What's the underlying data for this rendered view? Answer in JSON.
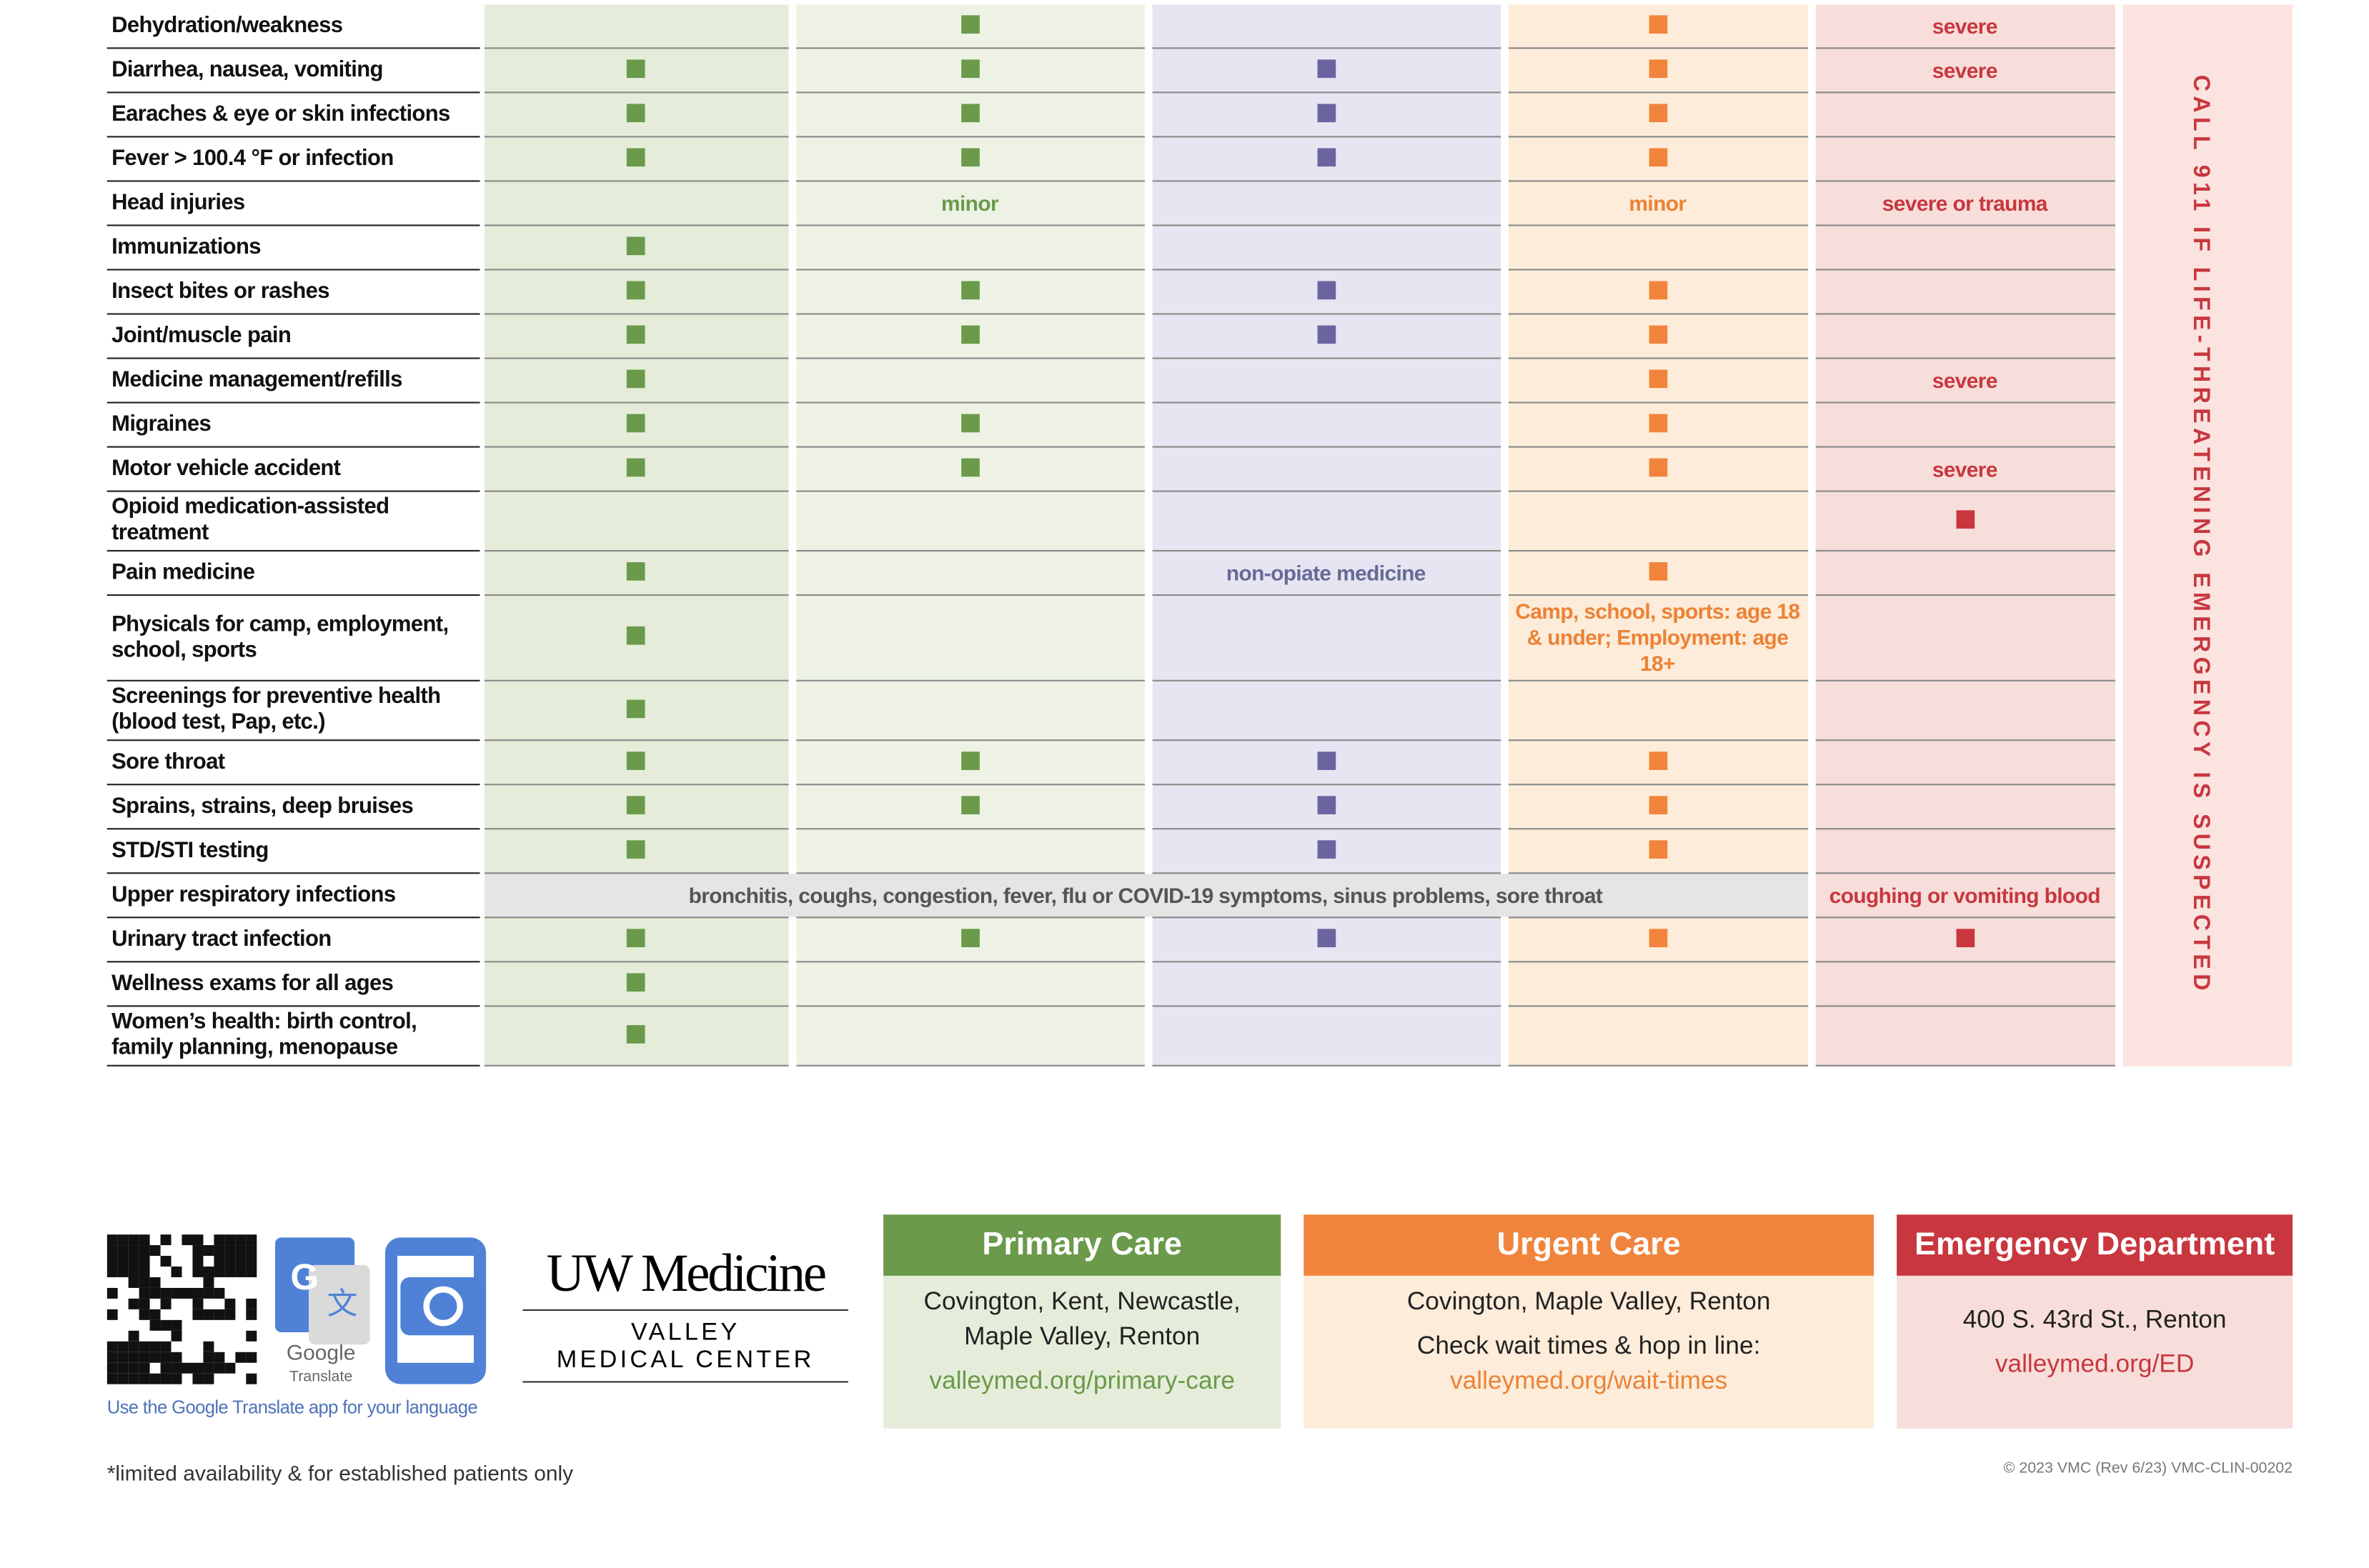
{
  "table": {
    "rows": [
      {
        "label": "Dehydration/weakness",
        "cells": [
          false,
          true,
          false,
          true,
          "severe"
        ]
      },
      {
        "label": "Diarrhea, nausea, vomiting",
        "cells": [
          true,
          true,
          true,
          true,
          "severe"
        ]
      },
      {
        "label": "Earaches & eye or skin infections",
        "cells": [
          true,
          true,
          true,
          true,
          false
        ]
      },
      {
        "label": "Fever > 100.4 °F or infection",
        "cells": [
          true,
          true,
          true,
          true,
          false
        ]
      },
      {
        "label": "Head injuries",
        "cells": [
          false,
          "minor",
          false,
          "minor",
          "severe or trauma"
        ]
      },
      {
        "label": "Immunizations",
        "cells": [
          true,
          false,
          false,
          false,
          false
        ]
      },
      {
        "label": "Insect bites or rashes",
        "cells": [
          true,
          true,
          true,
          true,
          false
        ]
      },
      {
        "label": "Joint/muscle pain",
        "cells": [
          true,
          true,
          true,
          true,
          false
        ]
      },
      {
        "label": "Medicine management/refills",
        "cells": [
          true,
          false,
          false,
          true,
          "severe"
        ]
      },
      {
        "label": "Migraines",
        "cells": [
          true,
          true,
          false,
          true,
          false
        ]
      },
      {
        "label": "Motor vehicle accident",
        "cells": [
          true,
          true,
          false,
          true,
          "severe"
        ]
      },
      {
        "label": "Opioid medication-assisted treatment",
        "cells": [
          false,
          false,
          false,
          false,
          true
        ]
      },
      {
        "label": "Pain medicine",
        "cells": [
          true,
          false,
          "non-opiate medicine",
          true,
          false
        ]
      },
      {
        "label": "Physicals for camp, employment, school, sports",
        "cells": [
          true,
          false,
          false,
          "Camp, school, sports: age 18 & under; Employment: age 18+",
          false
        ]
      },
      {
        "label": "Screenings for preventive health (blood test, Pap, etc.)",
        "cells": [
          true,
          false,
          false,
          false,
          false
        ]
      },
      {
        "label": "Sore throat",
        "cells": [
          true,
          true,
          true,
          true,
          false
        ]
      },
      {
        "label": "Sprains, strains, deep bruises",
        "cells": [
          true,
          true,
          true,
          true,
          false
        ]
      },
      {
        "label": "STD/STI testing",
        "cells": [
          true,
          false,
          true,
          true,
          false
        ]
      },
      {
        "label": "Upper respiratory infections",
        "wide_text": "bronchitis, coughs, congestion, fever, flu or COVID-19 symptoms, sinus problems, sore throat",
        "emergency": "coughing or vomiting blood"
      },
      {
        "label": "Urinary tract infection",
        "cells": [
          true,
          true,
          true,
          true,
          true
        ]
      },
      {
        "label": "Wellness exams for all ages",
        "cells": [
          true,
          false,
          false,
          false,
          false
        ]
      },
      {
        "label": "Women’s health: birth control, family planning, menopause",
        "cells": [
          true,
          false,
          false,
          false,
          false
        ]
      }
    ],
    "side_note": "CALL 911 IF LIFE-THREATENING EMERGENCY IS SUSPECTED"
  },
  "footer": {
    "translate_note": "Use the Google Translate app for your language",
    "google": "Google",
    "translate": "Translate",
    "logo": "UW Medicine",
    "logo_sub1": "VALLEY",
    "logo_sub2": "MEDICAL CENTER",
    "primary": {
      "title": "Primary Care",
      "cities": "Covington, Kent, Newcastle, Maple Valley, Renton",
      "url": "valleymed.org/primary-care"
    },
    "urgent": {
      "title": "Urgent Care",
      "cities": "Covington, Maple Valley, Renton",
      "note": "Check wait times & hop in line:",
      "url": "valleymed.org/wait-times"
    },
    "emergency": {
      "title": "Emergency Department",
      "address": "400 S. 43rd St., Renton",
      "url": "valleymed.org/ED"
    },
    "footnote": "*limited availability & for established patients only",
    "copyright": "© 2023 VMC (Rev 6/23)  VMC-CLIN-00202"
  }
}
